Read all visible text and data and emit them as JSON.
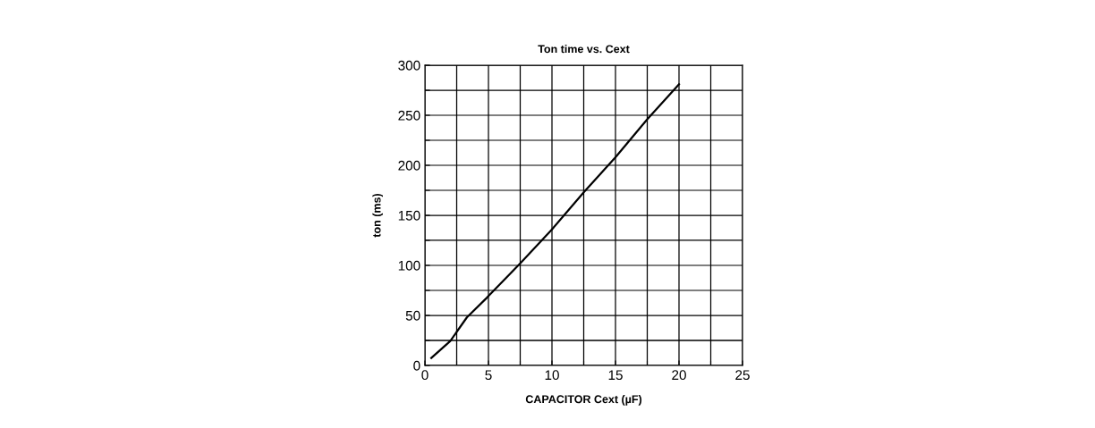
{
  "chart_data": {
    "type": "line",
    "title": "Ton time vs. Cext",
    "xlabel": "CAPACITOR Cext (µF)",
    "ylabel": "ton (ms)",
    "x": [
      0.5,
      2.0,
      3.3,
      4.9,
      7.5,
      10.0,
      12.5,
      15.0,
      17.5,
      20.0
    ],
    "series": [
      {
        "color": "#000000",
        "values": [
          7.5,
          24.5,
          48,
          68,
          102,
          136,
          173,
          208,
          246,
          281
        ]
      }
    ],
    "xlim": [
      0,
      25
    ],
    "ylim": [
      0,
      300
    ],
    "xticks": [
      0,
      {
        "value": 2.5,
        "label": null
      },
      5,
      {
        "value": 7.5,
        "label": null
      },
      10,
      {
        "value": 12.5,
        "label": null
      },
      15,
      {
        "value": 17.5,
        "label": null
      },
      20,
      {
        "value": 22.5,
        "label": null
      },
      25
    ],
    "yticks": [
      0,
      {
        "value": 25,
        "label": null
      },
      50,
      {
        "value": 75,
        "label": null
      },
      100,
      {
        "value": 125,
        "label": null
      },
      150,
      {
        "value": 175,
        "label": null
      },
      200,
      {
        "value": 225,
        "label": null
      },
      250,
      {
        "value": 275,
        "label": null
      },
      300
    ],
    "grid": true,
    "legend": false,
    "marker": "none",
    "line_style": "solid"
  }
}
